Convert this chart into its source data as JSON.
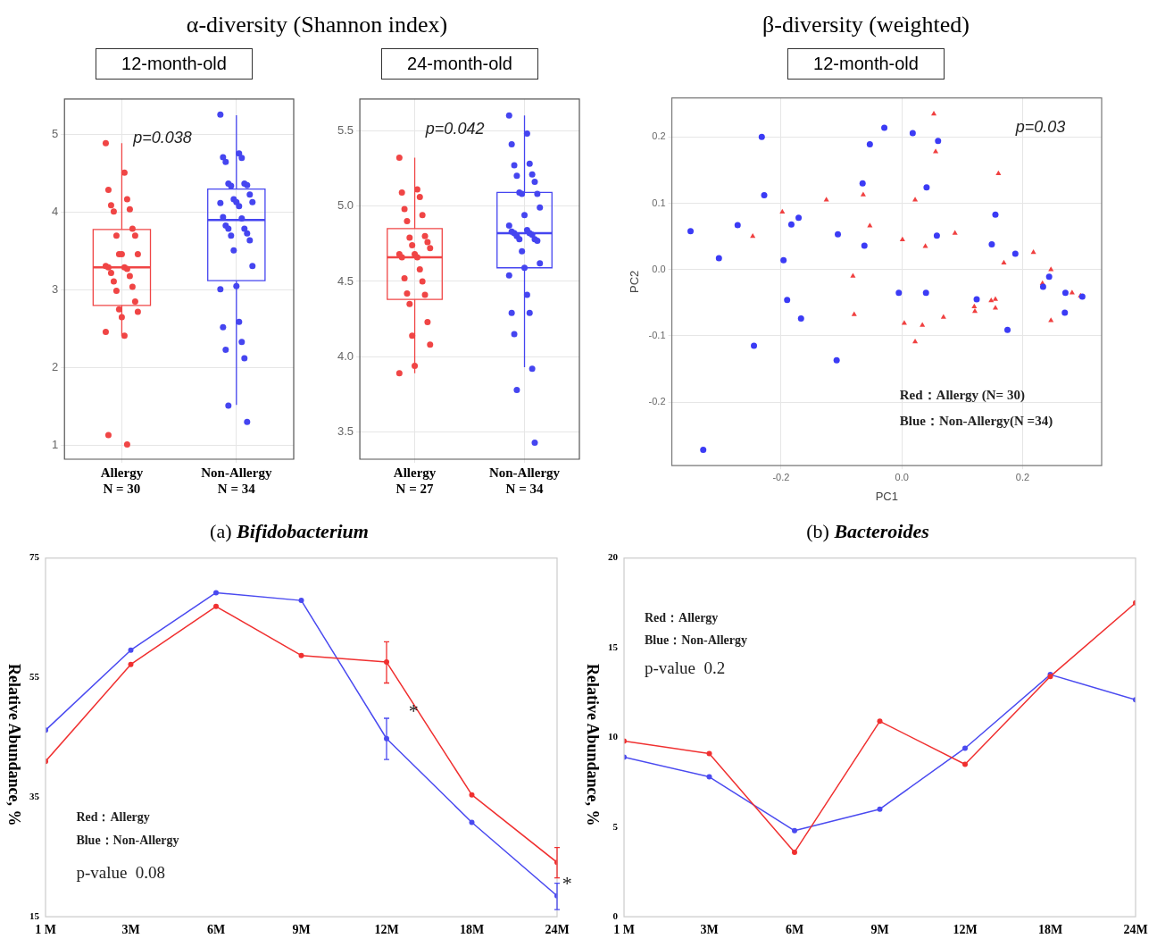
{
  "chart_data": [
    {
      "type": "box",
      "title": "α-diversity (Shannon index)",
      "subtitle": "12-month-old",
      "categories": [
        "Allergy\nN = 30",
        "Non-Allergy\nN = 34"
      ],
      "colors": [
        "#f04545",
        "#4545f0"
      ],
      "boxes": [
        {
          "low": 2.41,
          "q1": 2.8,
          "median": 3.29,
          "q3": 3.78,
          "high": 4.89
        },
        {
          "low": 1.52,
          "q1": 3.12,
          "median": 3.9,
          "q3": 4.3,
          "high": 5.25
        }
      ],
      "series": [
        {
          "type": "scatter",
          "color": "#f04545",
          "x": [
            "Allergy\nN = 30",
            "Allergy\nN = 30",
            "Allergy\nN = 30",
            "Allergy\nN = 30",
            "Allergy\nN = 30",
            "Allergy\nN = 30",
            "Allergy\nN = 30",
            "Allergy\nN = 30",
            "Allergy\nN = 30",
            "Allergy\nN = 30",
            "Allergy\nN = 30",
            "Allergy\nN = 30",
            "Allergy\nN = 30",
            "Allergy\nN = 30",
            "Allergy\nN = 30",
            "Allergy\nN = 30",
            "Allergy\nN = 30",
            "Allergy\nN = 30",
            "Allergy\nN = 30",
            "Allergy\nN = 30",
            "Allergy\nN = 30",
            "Allergy\nN = 30",
            "Allergy\nN = 30",
            "Allergy\nN = 30",
            "Allergy\nN = 30",
            "Allergy\nN = 30",
            "Allergy\nN = 30",
            "Allergy\nN = 30",
            "Allergy\nN = 30",
            "Allergy\nN = 30"
          ],
          "values": [
            4.89,
            4.51,
            4.29,
            4.17,
            4.09,
            4.04,
            4.01,
            3.79,
            3.7,
            3.7,
            3.46,
            3.46,
            3.46,
            3.31,
            3.29,
            3.29,
            3.27,
            3.22,
            3.18,
            3.11,
            3.04,
            2.99,
            2.85,
            2.75,
            2.72,
            2.65,
            2.46,
            2.41,
            1.13,
            1.01
          ]
        },
        {
          "type": "scatter",
          "color": "#4545f0",
          "x": [
            "Non-Allergy\nN = 34",
            "Non-Allergy\nN = 34",
            "Non-Allergy\nN = 34",
            "Non-Allergy\nN = 34",
            "Non-Allergy\nN = 34",
            "Non-Allergy\nN = 34",
            "Non-Allergy\nN = 34",
            "Non-Allergy\nN = 34",
            "Non-Allergy\nN = 34",
            "Non-Allergy\nN = 34",
            "Non-Allergy\nN = 34",
            "Non-Allergy\nN = 34",
            "Non-Allergy\nN = 34",
            "Non-Allergy\nN = 34",
            "Non-Allergy\nN = 34",
            "Non-Allergy\nN = 34",
            "Non-Allergy\nN = 34",
            "Non-Allergy\nN = 34",
            "Non-Allergy\nN = 34",
            "Non-Allergy\nN = 34",
            "Non-Allergy\nN = 34",
            "Non-Allergy\nN = 34",
            "Non-Allergy\nN = 34",
            "Non-Allergy\nN = 34",
            "Non-Allergy\nN = 34",
            "Non-Allergy\nN = 34",
            "Non-Allergy\nN = 34",
            "Non-Allergy\nN = 34",
            "Non-Allergy\nN = 34",
            "Non-Allergy\nN = 34",
            "Non-Allergy\nN = 34",
            "Non-Allergy\nN = 34",
            "Non-Allergy\nN = 34",
            "Non-Allergy\nN = 34"
          ],
          "values": [
            5.26,
            4.76,
            4.71,
            4.7,
            4.65,
            4.37,
            4.37,
            4.35,
            4.34,
            4.23,
            4.17,
            4.13,
            4.13,
            4.12,
            4.08,
            3.94,
            3.92,
            3.83,
            3.79,
            3.79,
            3.73,
            3.7,
            3.64,
            3.51,
            3.31,
            3.05,
            3.01,
            2.59,
            2.52,
            2.33,
            2.23,
            2.12,
            1.51,
            1.3
          ]
        }
      ],
      "ylim": [
        0.82,
        5.46
      ],
      "yticks": [
        1,
        2,
        3,
        4,
        5
      ],
      "grid": true,
      "marker": "circle",
      "annotations": [
        "p=0.038"
      ]
    },
    {
      "type": "box",
      "subtitle": "24-month-old",
      "categories": [
        "Allergy\nN = 27",
        "Non-Allergy\nN = 34"
      ],
      "colors": [
        "#f04545",
        "#4545f0"
      ],
      "boxes": [
        {
          "low": 3.89,
          "q1": 4.38,
          "median": 4.66,
          "q3": 4.85,
          "high": 5.32
        },
        {
          "low": 3.93,
          "q1": 4.59,
          "median": 4.82,
          "q3": 5.09,
          "high": 5.6
        }
      ],
      "series": [
        {
          "type": "scatter",
          "color": "#f04545",
          "x": [
            "Allergy\nN = 27",
            "Allergy\nN = 27",
            "Allergy\nN = 27",
            "Allergy\nN = 27",
            "Allergy\nN = 27",
            "Allergy\nN = 27",
            "Allergy\nN = 27",
            "Allergy\nN = 27",
            "Allergy\nN = 27",
            "Allergy\nN = 27",
            "Allergy\nN = 27",
            "Allergy\nN = 27",
            "Allergy\nN = 27",
            "Allergy\nN = 27",
            "Allergy\nN = 27",
            "Allergy\nN = 27",
            "Allergy\nN = 27",
            "Allergy\nN = 27",
            "Allergy\nN = 27",
            "Allergy\nN = 27",
            "Allergy\nN = 27",
            "Allergy\nN = 27",
            "Allergy\nN = 27",
            "Allergy\nN = 27",
            "Allergy\nN = 27",
            "Allergy\nN = 27",
            "Allergy\nN = 27"
          ],
          "values": [
            5.32,
            5.11,
            5.09,
            5.06,
            4.98,
            4.94,
            4.9,
            4.8,
            4.79,
            4.76,
            4.74,
            4.72,
            4.68,
            4.68,
            4.66,
            4.66,
            4.58,
            4.52,
            4.5,
            4.42,
            4.41,
            4.35,
            4.23,
            4.14,
            4.08,
            3.94,
            3.89
          ]
        },
        {
          "type": "scatter",
          "color": "#4545f0",
          "x": [
            "Non-Allergy\nN = 34",
            "Non-Allergy\nN = 34",
            "Non-Allergy\nN = 34",
            "Non-Allergy\nN = 34",
            "Non-Allergy\nN = 34",
            "Non-Allergy\nN = 34",
            "Non-Allergy\nN = 34",
            "Non-Allergy\nN = 34",
            "Non-Allergy\nN = 34",
            "Non-Allergy\nN = 34",
            "Non-Allergy\nN = 34",
            "Non-Allergy\nN = 34",
            "Non-Allergy\nN = 34",
            "Non-Allergy\nN = 34",
            "Non-Allergy\nN = 34",
            "Non-Allergy\nN = 34",
            "Non-Allergy\nN = 34",
            "Non-Allergy\nN = 34",
            "Non-Allergy\nN = 34",
            "Non-Allergy\nN = 34",
            "Non-Allergy\nN = 34",
            "Non-Allergy\nN = 34",
            "Non-Allergy\nN = 34",
            "Non-Allergy\nN = 34",
            "Non-Allergy\nN = 34",
            "Non-Allergy\nN = 34",
            "Non-Allergy\nN = 34",
            "Non-Allergy\nN = 34",
            "Non-Allergy\nN = 34",
            "Non-Allergy\nN = 34",
            "Non-Allergy\nN = 34",
            "Non-Allergy\nN = 34",
            "Non-Allergy\nN = 34",
            "Non-Allergy\nN = 34"
          ],
          "values": [
            5.6,
            5.48,
            5.41,
            5.28,
            5.27,
            5.21,
            5.2,
            5.16,
            5.09,
            5.08,
            5.08,
            4.99,
            4.94,
            4.87,
            4.84,
            4.83,
            4.82,
            4.82,
            4.81,
            4.8,
            4.78,
            4.78,
            4.77,
            4.7,
            4.62,
            4.59,
            4.54,
            4.41,
            4.29,
            4.29,
            4.15,
            3.92,
            3.78,
            3.43
          ]
        }
      ],
      "ylim": [
        3.32,
        5.71
      ],
      "yticks": [
        {
          "value": 3.5,
          "label": "3.5"
        },
        {
          "value": 4,
          "label": "4.0"
        },
        {
          "value": 4.5,
          "label": "4.5"
        },
        {
          "value": 5,
          "label": "5.0"
        },
        {
          "value": 5.5,
          "label": "5.5"
        }
      ],
      "grid": true,
      "marker": "circle",
      "annotations": [
        "p=0.042"
      ]
    },
    {
      "type": "scatter",
      "title": "β-diversity (weighted)",
      "subtitle": "12-month-old",
      "xlabel": "PC1",
      "ylabel": "PC2",
      "series": [
        {
          "color": "#3b3bf5",
          "marker": "circle",
          "x": [
            -0.35,
            -0.303,
            -0.272,
            -0.232,
            -0.228,
            -0.245,
            -0.329,
            -0.196,
            -0.183,
            -0.171,
            -0.19,
            -0.167,
            -0.106,
            -0.108,
            -0.065,
            -0.062,
            -0.053,
            -0.029,
            -0.005,
            0.018,
            0.041,
            0.04,
            0.06,
            0.058,
            0.124,
            0.149,
            0.155,
            0.175,
            0.188,
            0.234,
            0.244,
            0.271,
            0.27,
            0.299
          ],
          "values": [
            0.058,
            0.017,
            0.067,
            0.2,
            0.112,
            -0.115,
            -0.272,
            0.014,
            0.068,
            0.078,
            -0.046,
            -0.074,
            0.053,
            -0.137,
            0.13,
            0.036,
            0.189,
            0.214,
            -0.035,
            0.206,
            0.124,
            -0.035,
            0.194,
            0.051,
            -0.045,
            0.038,
            0.083,
            -0.091,
            0.024,
            -0.026,
            -0.011,
            -0.035,
            -0.065,
            -0.041
          ]
        },
        {
          "color": "#f04040",
          "marker": "triangle",
          "x": [
            -0.247,
            -0.198,
            -0.125,
            -0.064,
            -0.053,
            -0.081,
            -0.079,
            0.001,
            0.004,
            0.022,
            0.022,
            0.034,
            0.039,
            0.053,
            0.056,
            0.069,
            0.088,
            0.12,
            0.121,
            0.148,
            0.155,
            0.155,
            0.16,
            0.169,
            0.218,
            0.233,
            0.247,
            0.247,
            0.282,
            0.296
          ],
          "values": [
            0.05,
            0.087,
            0.105,
            0.113,
            0.066,
            -0.01,
            -0.068,
            0.045,
            -0.081,
            0.105,
            -0.109,
            -0.084,
            0.035,
            0.235,
            0.178,
            -0.072,
            0.055,
            -0.056,
            -0.063,
            -0.047,
            -0.045,
            -0.058,
            0.145,
            0.01,
            0.026,
            -0.021,
            0,
            -0.077,
            -0.035,
            -0.04
          ]
        }
      ],
      "xlim": [
        -0.381,
        0.331
      ],
      "xticks": [
        -0.2,
        {
          "value": 0,
          "label": "0.0"
        },
        0.2
      ],
      "ylim": [
        -0.296,
        0.259
      ],
      "yticks": [
        -0.2,
        -0.1,
        {
          "value": 0,
          "label": "0.0"
        },
        0.1,
        0.2
      ],
      "grid": true,
      "annotations": [
        "p=0.03",
        "Red：Allergy (N= 30)",
        "Blue：Non-Allergy(N =34)"
      ]
    },
    {
      "type": "line",
      "title": "(a) Bifidobacterium",
      "ylabel": "Relative Abundance, %",
      "categories": [
        "1 M",
        "3M",
        "6M",
        "9M",
        "12M",
        "18M",
        "24M"
      ],
      "series": [
        {
          "color": "#f03030",
          "values": [
            41.0,
            57.2,
            66.9,
            58.7,
            57.6,
            35.4,
            24.1
          ],
          "errors": [
            null,
            null,
            null,
            null,
            [
              54.1,
              61.0
            ],
            null,
            [
              21.5,
              26.6
            ]
          ]
        },
        {
          "color": "#4a4af0",
          "values": [
            46.2,
            59.6,
            69.2,
            67.9,
            44.8,
            30.8,
            18.5
          ],
          "errors": [
            null,
            null,
            null,
            null,
            [
              41.3,
              48.2
            ],
            null,
            [
              16.2,
              20.6
            ]
          ]
        }
      ],
      "ylim": [
        15,
        75
      ],
      "yticks": [
        15,
        35,
        55,
        75
      ],
      "grid": false,
      "marker": "circle",
      "line_style": "solid",
      "annotations": [
        "Red：Allergy",
        "Blue：Non-Allergy",
        "p-value  0.08",
        "*",
        "*"
      ]
    },
    {
      "type": "line",
      "title": "(b) Bacteroides",
      "ylabel": "Relative Abundance, %",
      "categories": [
        "1 M",
        "3M",
        "6M",
        "9M",
        "12M",
        "18M",
        "24M"
      ],
      "series": [
        {
          "color": "#f03030",
          "values": [
            9.8,
            9.1,
            3.6,
            10.9,
            8.5,
            13.4,
            17.5
          ]
        },
        {
          "color": "#4a4af0",
          "values": [
            8.9,
            7.8,
            4.8,
            6.0,
            9.4,
            13.5,
            12.1
          ]
        }
      ],
      "ylim": [
        0,
        20
      ],
      "yticks": [
        0,
        5,
        10,
        15,
        20
      ],
      "grid": false,
      "marker": "circle",
      "line_style": "solid",
      "annotations": [
        "Red：Allergy",
        "Blue：Non-Allergy",
        "p-value  0.2"
      ]
    }
  ]
}
